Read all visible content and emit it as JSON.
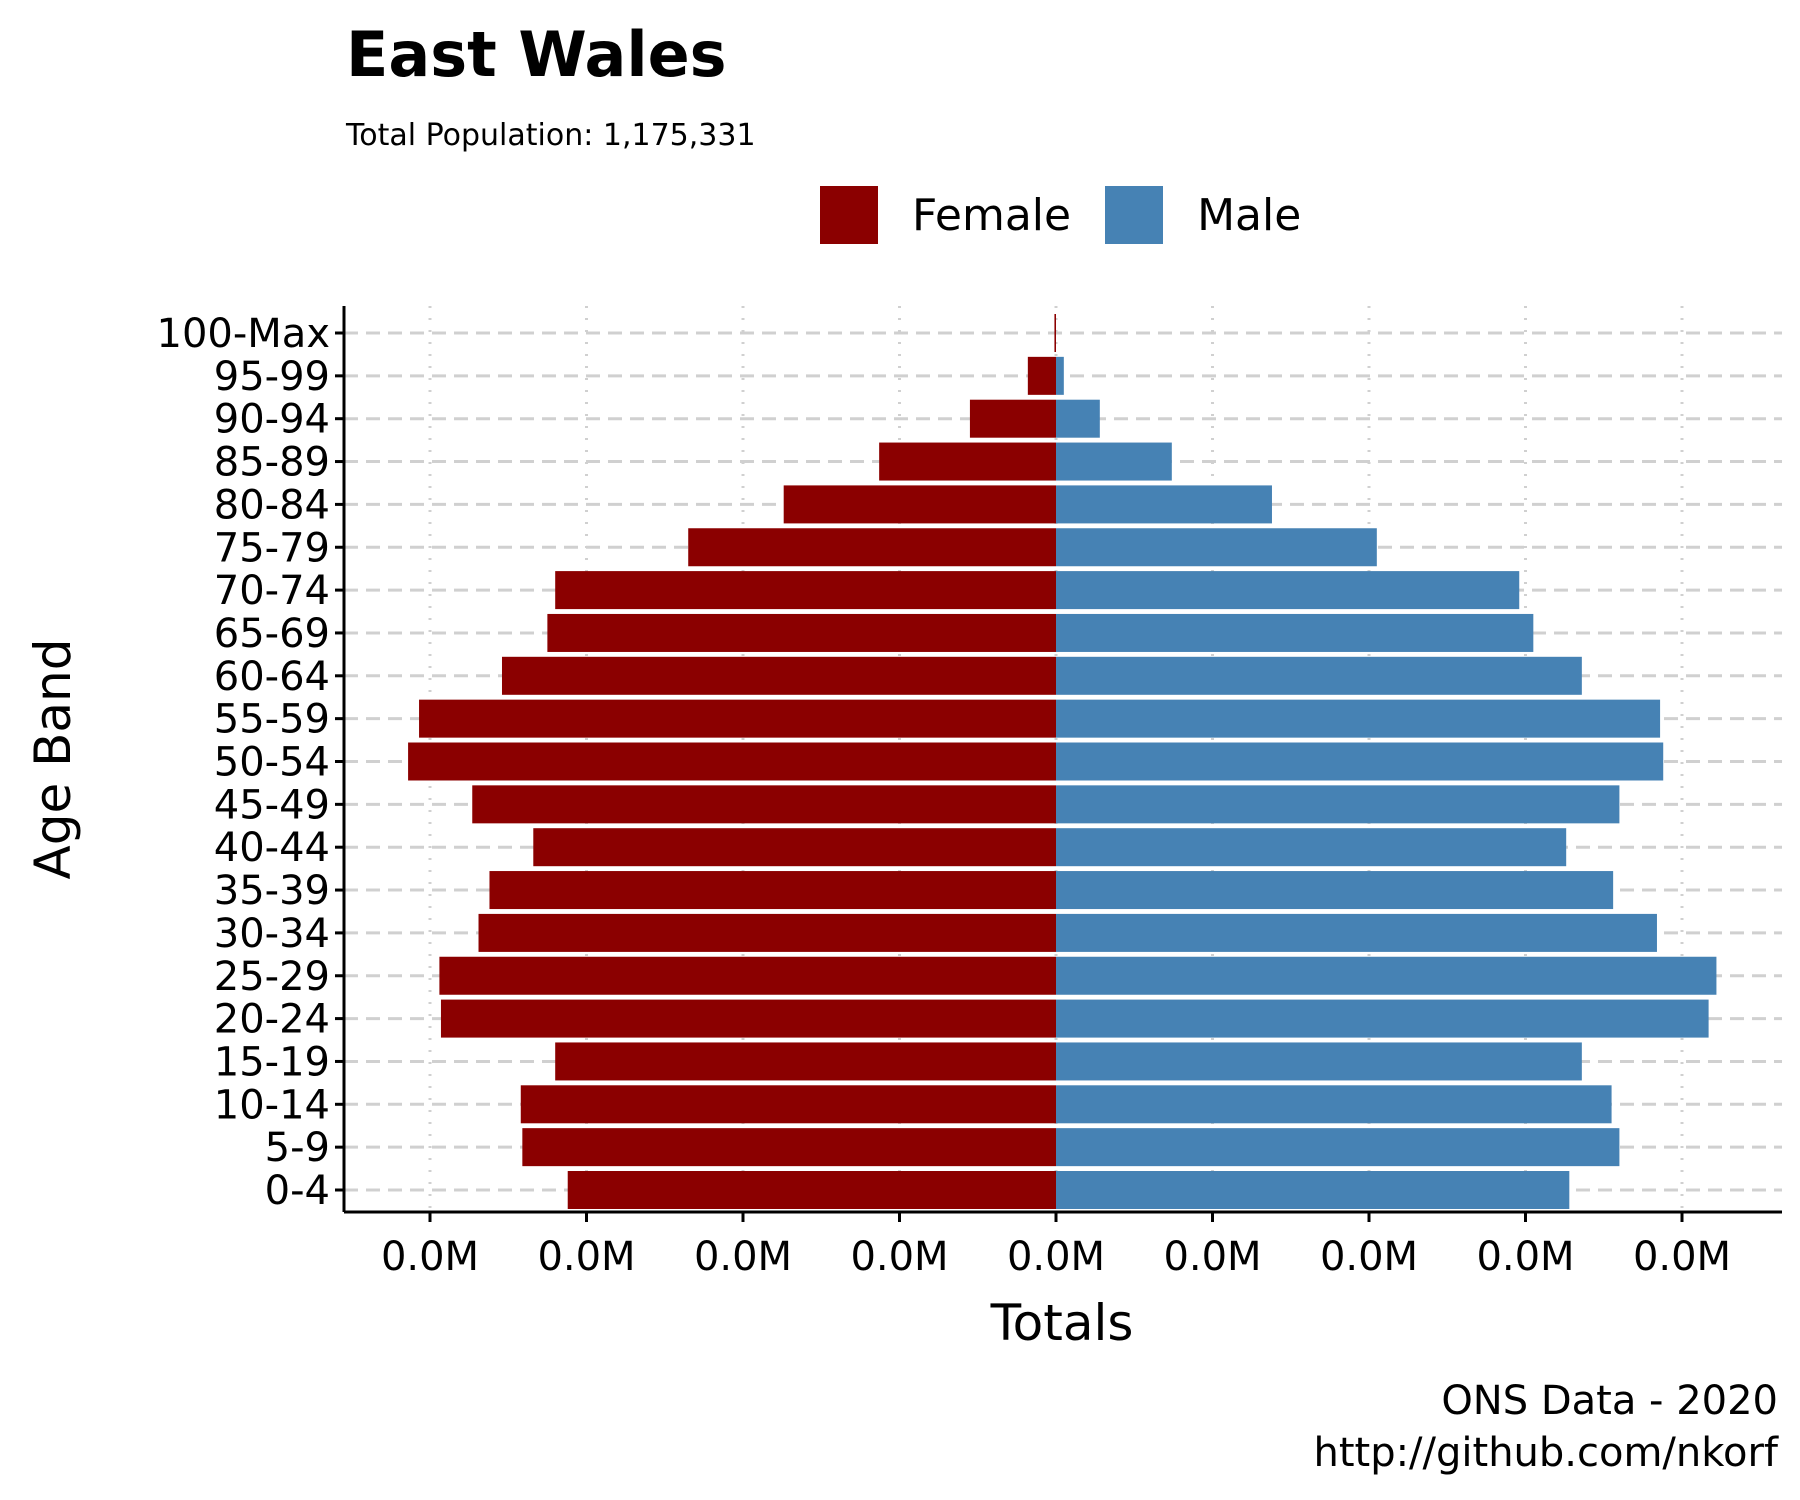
{
  "title": "East Wales",
  "subtitle": "Total Population:  1,175,331",
  "caption": {
    "line1": "ONS Data - 2020",
    "line2": "http://github.com/nkorf"
  },
  "colors": {
    "female": "#8B0000",
    "male": "#4682B4"
  },
  "chart_data": {
    "type": "bar",
    "orientation": "horizontal-population-pyramid",
    "title": "East Wales",
    "subtitle": "Total Population:  1,175,331",
    "xlabel": "Totals",
    "ylabel": "Age Band",
    "categories": [
      "0-4",
      "5-9",
      "10-14",
      "15-19",
      "20-24",
      "25-29",
      "30-34",
      "35-39",
      "40-44",
      "45-49",
      "50-54",
      "55-59",
      "60-64",
      "65-69",
      "70-74",
      "75-79",
      "80-84",
      "85-89",
      "90-94",
      "95-99",
      "100-Max"
    ],
    "series": [
      {
        "name": "Female",
        "values": [
          -31200,
          -34100,
          -34200,
          -32000,
          -39300,
          -39400,
          -36900,
          -36200,
          -33400,
          -37300,
          -41400,
          -40700,
          -35400,
          -32500,
          -32000,
          -23500,
          -17400,
          -11300,
          -5500,
          -1800,
          -100
        ]
      },
      {
        "name": "Male",
        "values": [
          32800,
          36000,
          35500,
          33600,
          41700,
          42200,
          38400,
          35600,
          32600,
          36000,
          38800,
          38600,
          33600,
          30500,
          29600,
          20500,
          13800,
          7400,
          2800,
          500,
          0
        ]
      }
    ],
    "xlim": [
      -45000,
      45000
    ],
    "xticks": [
      -40000,
      -30000,
      -20000,
      -10000,
      0,
      10000,
      20000,
      30000,
      40000
    ],
    "xtick_labels": [
      "0.0M",
      "0.0M",
      "0.0M",
      "0.0M",
      "0.0M",
      "0.0M",
      "0.0M",
      "0.0M",
      "0.0M"
    ],
    "legend": {
      "position": "top",
      "entries": [
        "Female",
        "Male"
      ]
    },
    "grid": {
      "major_y": "dashed",
      "major_x": "dotted"
    }
  }
}
